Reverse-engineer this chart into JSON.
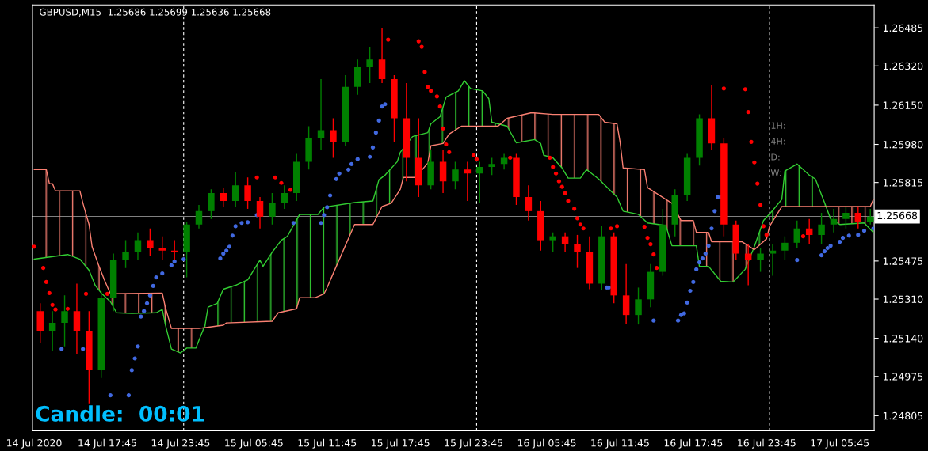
{
  "chart_data": {
    "type": "candlestick",
    "title": "GBPUSD,M15  1.25686 1.25699 1.25636 1.25668",
    "x": [
      "2020-07-14T12:15",
      "2020-07-14T13:15",
      "2020-07-14T14:15",
      "2020-07-14T15:15",
      "2020-07-14T16:15",
      "2020-07-14T17:15",
      "2020-07-14T18:15",
      "2020-07-14T19:15",
      "2020-07-14T20:15",
      "2020-07-14T21:15",
      "2020-07-14T22:15",
      "2020-07-14T23:15",
      "2020-07-15T00:15",
      "2020-07-15T01:15",
      "2020-07-15T02:15",
      "2020-07-15T03:15",
      "2020-07-15T04:15",
      "2020-07-15T05:15",
      "2020-07-15T06:15",
      "2020-07-15T07:15",
      "2020-07-15T08:15",
      "2020-07-15T09:15",
      "2020-07-15T10:15",
      "2020-07-15T11:15",
      "2020-07-15T12:15",
      "2020-07-15T13:15",
      "2020-07-15T14:15",
      "2020-07-15T15:15",
      "2020-07-15T16:15",
      "2020-07-15T17:15",
      "2020-07-15T18:15",
      "2020-07-15T19:15",
      "2020-07-15T20:15",
      "2020-07-15T21:15",
      "2020-07-15T22:15",
      "2020-07-15T23:15",
      "2020-07-16T00:15",
      "2020-07-16T01:15",
      "2020-07-16T02:15",
      "2020-07-16T03:15",
      "2020-07-16T04:15",
      "2020-07-16T05:15",
      "2020-07-16T06:15",
      "2020-07-16T07:15",
      "2020-07-16T08:15",
      "2020-07-16T09:15",
      "2020-07-16T10:15",
      "2020-07-16T11:15",
      "2020-07-16T12:15",
      "2020-07-16T13:15",
      "2020-07-16T14:15",
      "2020-07-16T15:15",
      "2020-07-16T16:15",
      "2020-07-16T17:15",
      "2020-07-16T18:15",
      "2020-07-16T19:15",
      "2020-07-16T20:15",
      "2020-07-16T21:15",
      "2020-07-16T22:15",
      "2020-07-16T23:15",
      "2020-07-17T00:15",
      "2020-07-17T01:15",
      "2020-07-17T02:15",
      "2020-07-17T03:15",
      "2020-07-17T04:15",
      "2020-07-17T05:15",
      "2020-07-17T06:15",
      "2020-07-17T07:15",
      "2020-07-17T08:15"
    ],
    "ohlc": [
      [
        1.25258,
        1.25292,
        1.25122,
        1.25173
      ],
      [
        1.25173,
        1.25258,
        1.25087,
        1.25207
      ],
      [
        1.25207,
        1.25326,
        1.25105,
        1.25258
      ],
      [
        1.25258,
        1.25377,
        1.2507,
        1.25173
      ],
      [
        1.25173,
        1.25258,
        1.24859,
        1.25002
      ],
      [
        1.25002,
        1.25343,
        1.24968,
        1.25316
      ],
      [
        1.25316,
        1.25507,
        1.25258,
        1.25479
      ],
      [
        1.25479,
        1.25565,
        1.25445,
        1.25513
      ],
      [
        1.25513,
        1.25599,
        1.25479,
        1.25565
      ],
      [
        1.25565,
        1.25616,
        1.25496,
        1.25531
      ],
      [
        1.25531,
        1.25582,
        1.25479,
        1.2552
      ],
      [
        1.2552,
        1.25565,
        1.25479,
        1.25513
      ],
      [
        1.25513,
        1.25643,
        1.25404,
        1.25633
      ],
      [
        1.25633,
        1.25718,
        1.25616,
        1.25691
      ],
      [
        1.25691,
        1.25786,
        1.25657,
        1.25769
      ],
      [
        1.25769,
        1.25793,
        1.25711,
        1.25735
      ],
      [
        1.25735,
        1.25861,
        1.25711,
        1.25803
      ],
      [
        1.25803,
        1.25837,
        1.25701,
        1.25735
      ],
      [
        1.25735,
        1.25752,
        1.25616,
        1.25667
      ],
      [
        1.25667,
        1.25769,
        1.25633,
        1.25725
      ],
      [
        1.25725,
        1.25803,
        1.25701,
        1.25769
      ],
      [
        1.25769,
        1.25939,
        1.25735,
        1.25905
      ],
      [
        1.25905,
        1.26059,
        1.25871,
        1.26008
      ],
      [
        1.26008,
        1.26263,
        1.25957,
        1.26042
      ],
      [
        1.26042,
        1.26093,
        1.25922,
        1.25991
      ],
      [
        1.25991,
        1.2628,
        1.25974,
        1.26229
      ],
      [
        1.26229,
        1.26348,
        1.26195,
        1.26314
      ],
      [
        1.26314,
        1.264,
        1.26246,
        1.26348
      ],
      [
        1.26348,
        1.26485,
        1.26246,
        1.26263
      ],
      [
        1.26263,
        1.2628,
        1.25991,
        1.26093
      ],
      [
        1.26093,
        1.26246,
        1.2582,
        1.25922
      ],
      [
        1.25922,
        1.26093,
        1.25752,
        1.25803
      ],
      [
        1.25803,
        1.25957,
        1.25786,
        1.25905
      ],
      [
        1.25905,
        1.25957,
        1.25769,
        1.2582
      ],
      [
        1.2582,
        1.25905,
        1.25786,
        1.25871
      ],
      [
        1.25871,
        1.25905,
        1.25735,
        1.25854
      ],
      [
        1.25854,
        1.25905,
        1.25728,
        1.25882
      ],
      [
        1.25882,
        1.25922,
        1.25847,
        1.25895
      ],
      [
        1.25895,
        1.25939,
        1.25871,
        1.25922
      ],
      [
        1.25922,
        1.25939,
        1.25718,
        1.25752
      ],
      [
        1.25752,
        1.25803,
        1.2565,
        1.25691
      ],
      [
        1.25691,
        1.25735,
        1.2552,
        1.25565
      ],
      [
        1.25565,
        1.25599,
        1.25513,
        1.25582
      ],
      [
        1.25582,
        1.25599,
        1.25513,
        1.25548
      ],
      [
        1.25548,
        1.25588,
        1.25445,
        1.25513
      ],
      [
        1.25513,
        1.25582,
        1.25353,
        1.25377
      ],
      [
        1.25377,
        1.25626,
        1.2535,
        1.25582
      ],
      [
        1.25582,
        1.25599,
        1.25292,
        1.25326
      ],
      [
        1.25326,
        1.25462,
        1.252,
        1.25241
      ],
      [
        1.25241,
        1.2536,
        1.252,
        1.25309
      ],
      [
        1.25309,
        1.25462,
        1.25275,
        1.25428
      ],
      [
        1.25428,
        1.25701,
        1.25411,
        1.25633
      ],
      [
        1.25633,
        1.25786,
        1.25582,
        1.25759
      ],
      [
        1.25759,
        1.25939,
        1.25735,
        1.25922
      ],
      [
        1.25922,
        1.2611,
        1.25888,
        1.26093
      ],
      [
        1.26093,
        1.26239,
        1.25957,
        1.25984
      ],
      [
        1.25984,
        1.26008,
        1.25582,
        1.25633
      ],
      [
        1.25633,
        1.2565,
        1.25479,
        1.25507
      ],
      [
        1.25507,
        1.25548,
        1.2537,
        1.25479
      ],
      [
        1.25479,
        1.25531,
        1.25428,
        1.25507
      ],
      [
        1.25507,
        1.25548,
        1.25411,
        1.2552
      ],
      [
        1.2552,
        1.25582,
        1.25479,
        1.25554
      ],
      [
        1.25554,
        1.2565,
        1.25531,
        1.25616
      ],
      [
        1.25616,
        1.25657,
        1.25548,
        1.25588
      ],
      [
        1.25588,
        1.25684,
        1.25548,
        1.25633
      ],
      [
        1.25633,
        1.25701,
        1.25599,
        1.25657
      ],
      [
        1.25657,
        1.25711,
        1.25616,
        1.25684
      ],
      [
        1.25684,
        1.25711,
        1.25616,
        1.25643
      ],
      [
        1.25643,
        1.25701,
        1.25633,
        1.25667
      ]
    ],
    "colors": [
      "#ff0000",
      "#008000",
      "#008000",
      "#ff0000",
      "#ff0000",
      "#008000",
      "#008000",
      "#008000",
      "#008000",
      "#ff0000",
      "#ff0000",
      "#ff0000",
      "#008000",
      "#008000",
      "#008000",
      "#ff0000",
      "#008000",
      "#ff0000",
      "#ff0000",
      "#008000",
      "#008000",
      "#008000",
      "#008000",
      "#008000",
      "#ff0000",
      "#008000",
      "#008000",
      "#008000",
      "#ff0000",
      "#ff0000",
      "#ff0000",
      "#ff0000",
      "#008000",
      "#ff0000",
      "#008000",
      "#ff0000",
      "#008000",
      "#008000",
      "#008000",
      "#ff0000",
      "#ff0000",
      "#ff0000",
      "#008000",
      "#ff0000",
      "#ff0000",
      "#ff0000",
      "#008000",
      "#ff0000",
      "#ff0000",
      "#008000",
      "#008000",
      "#008000",
      "#008000",
      "#008000",
      "#008000",
      "#ff0000",
      "#ff0000",
      "#ff0000",
      "#ff0000",
      "#008000",
      "#008000",
      "#008000",
      "#008000",
      "#ff0000",
      "#008000",
      "#008000",
      "#008000",
      "#ff0000",
      "#008000"
    ],
    "series": [
      {
        "type": "line",
        "color": "#32cd32",
        "x": [
          "2020-07-14T11:45",
          "2020-07-14T14:30",
          "2020-07-14T15:30",
          "2020-07-14T16:15",
          "2020-07-14T16:45",
          "2020-07-14T17:15",
          "2020-07-14T18:00",
          "2020-07-14T18:30",
          "2020-07-14T19:45",
          "2020-07-14T21:45",
          "2020-07-14T22:15",
          "2020-07-14T22:30",
          "2020-07-14T23:00",
          "2020-07-14T23:45",
          "2020-07-15T00:15",
          "2020-07-15T01:00",
          "2020-07-15T01:45",
          "2020-07-15T02:00",
          "2020-07-15T02:45",
          "2020-07-15T03:15",
          "2020-07-15T04:15",
          "2020-07-15T05:15",
          "2020-07-15T06:15",
          "2020-07-15T06:30",
          "2020-07-15T07:15",
          "2020-07-15T08:00",
          "2020-07-15T08:30",
          "2020-07-15T09:30",
          "2020-07-15T11:00",
          "2020-07-15T11:30",
          "2020-07-15T14:00",
          "2020-07-15T15:30",
          "2020-07-15T16:00",
          "2020-07-15T16:30",
          "2020-07-15T17:30",
          "2020-07-15T17:45",
          "2020-07-15T18:45",
          "2020-07-15T20:00",
          "2020-07-15T20:15",
          "2020-07-15T21:00",
          "2020-07-15T21:30",
          "2020-07-15T22:30",
          "2020-07-15T23:00",
          "2020-07-15T23:30",
          "2020-07-16T00:30",
          "2020-07-16T01:00",
          "2020-07-16T01:15",
          "2020-07-16T02:30",
          "2020-07-16T03:15",
          "2020-07-16T04:45",
          "2020-07-16T05:15",
          "2020-07-16T05:30",
          "2020-07-16T06:15",
          "2020-07-16T07:00",
          "2020-07-16T07:30",
          "2020-07-16T08:30",
          "2020-07-16T09:00",
          "2020-07-16T10:00",
          "2020-07-16T11:30",
          "2020-07-16T12:00",
          "2020-07-16T13:15",
          "2020-07-16T14:00",
          "2020-07-16T15:30",
          "2020-07-16T16:00",
          "2020-07-16T18:00",
          "2020-07-16T18:15",
          "2020-07-16T19:00",
          "2020-07-16T20:00",
          "2020-07-16T21:00",
          "2020-07-16T22:00",
          "2020-07-16T22:45",
          "2020-07-16T23:30",
          "2020-07-17T00:15",
          "2020-07-17T01:00",
          "2020-07-17T01:15",
          "2020-07-17T02:15",
          "2020-07-17T03:15",
          "2020-07-17T03:45",
          "2020-07-17T04:30",
          "2020-07-17T05:00",
          "2020-07-17T05:45",
          "2020-07-17T07:45",
          "2020-07-17T08:30"
        ],
        "values": [
          1.25483,
          1.25503,
          1.25483,
          1.25435,
          1.2537,
          1.25336,
          1.25299,
          1.25251,
          1.25248,
          1.25251,
          1.25265,
          1.252,
          1.25094,
          1.25077,
          1.25098,
          1.25098,
          1.25197,
          1.25275,
          1.25292,
          1.25353,
          1.2537,
          1.25394,
          1.25479,
          1.25452,
          1.25513,
          1.25565,
          1.25582,
          1.25677,
          1.25677,
          1.25708,
          1.25728,
          1.25735,
          1.25827,
          1.25847,
          1.25905,
          1.25946,
          1.26014,
          1.26031,
          1.26069,
          1.261,
          1.26185,
          1.26212,
          1.26256,
          1.26222,
          1.26212,
          1.26178,
          1.26076,
          1.26059,
          1.25987,
          1.26001,
          1.25984,
          1.25933,
          1.25922,
          1.25878,
          1.25834,
          1.25834,
          1.25871,
          1.2583,
          1.25752,
          1.25691,
          1.25677,
          1.2564,
          1.25629,
          1.25541,
          1.25541,
          1.25452,
          1.25452,
          1.25387,
          1.25384,
          1.25439,
          1.25537,
          1.2565,
          1.25694,
          1.25742,
          1.25865,
          1.25895,
          1.25847,
          1.2583,
          1.25728,
          1.25657,
          1.25633,
          1.2564,
          1.25599
        ]
      },
      {
        "type": "line",
        "color": "#fa8072",
        "x": [
          "2020-07-14T11:45",
          "2020-07-14T12:45",
          "2020-07-14T13:00",
          "2020-07-14T13:15",
          "2020-07-14T13:30",
          "2020-07-14T15:30",
          "2020-07-14T15:45",
          "2020-07-14T16:15",
          "2020-07-14T16:30",
          "2020-07-14T17:00",
          "2020-07-14T17:30",
          "2020-07-14T18:00",
          "2020-07-14T22:15",
          "2020-07-14T22:30",
          "2020-07-14T23:00",
          "2020-07-15T01:15",
          "2020-07-15T03:15",
          "2020-07-15T03:30",
          "2020-07-15T07:15",
          "2020-07-15T07:45",
          "2020-07-15T09:15",
          "2020-07-15T09:30",
          "2020-07-15T10:45",
          "2020-07-15T11:30",
          "2020-07-15T11:45",
          "2020-07-15T12:15",
          "2020-07-15T14:00",
          "2020-07-15T15:30",
          "2020-07-15T16:15",
          "2020-07-15T17:00",
          "2020-07-15T17:45",
          "2020-07-15T18:00",
          "2020-07-15T19:00",
          "2020-07-15T20:00",
          "2020-07-15T20:15",
          "2020-07-15T21:15",
          "2020-07-15T21:45",
          "2020-07-15T22:45",
          "2020-07-16T01:45",
          "2020-07-16T02:30",
          "2020-07-16T04:30",
          "2020-07-16T06:15",
          "2020-07-16T10:00",
          "2020-07-16T10:30",
          "2020-07-16T11:30",
          "2020-07-16T11:45",
          "2020-07-16T12:00",
          "2020-07-16T13:45",
          "2020-07-16T14:00",
          "2020-07-16T16:00",
          "2020-07-16T16:45",
          "2020-07-16T17:45",
          "2020-07-16T18:00",
          "2020-07-16T19:00",
          "2020-07-16T19:15",
          "2020-07-16T21:45",
          "2020-07-16T22:45",
          "2020-07-16T23:45",
          "2020-07-17T00:00",
          "2020-07-17T01:00",
          "2020-07-17T08:15",
          "2020-07-17T08:30"
        ],
        "values": [
          1.25871,
          1.25871,
          1.2581,
          1.2581,
          1.25779,
          1.25779,
          1.25725,
          1.25633,
          1.25537,
          1.25462,
          1.25394,
          1.25333,
          1.25336,
          1.25275,
          1.25183,
          1.25183,
          1.25197,
          1.25207,
          1.25214,
          1.25251,
          1.25268,
          1.25316,
          1.25316,
          1.25333,
          1.2536,
          1.25421,
          1.25633,
          1.25633,
          1.25711,
          1.25725,
          1.25786,
          1.25837,
          1.25837,
          1.25899,
          1.25974,
          1.25984,
          1.26025,
          1.26059,
          1.26059,
          1.26093,
          1.26117,
          1.2611,
          1.2611,
          1.26076,
          1.26069,
          1.25991,
          1.25878,
          1.25871,
          1.25793,
          1.25725,
          1.2565,
          1.2565,
          1.25599,
          1.25599,
          1.25558,
          1.25558,
          1.25524,
          1.25571,
          1.25626,
          1.25711,
          1.25711,
          1.25742
        ]
      },
      {
        "type": "scatter",
        "color": "#ff0000",
        "marker": "circle",
        "x": [
          "2020-07-14T11:45",
          "2020-07-14T12:30",
          "2020-07-14T12:45",
          "2020-07-14T13:00",
          "2020-07-14T13:15",
          "2020-07-14T13:30",
          "2020-07-14T14:30",
          "2020-07-14T16:00",
          "2020-07-14T17:45",
          "2020-07-15T06:00",
          "2020-07-15T07:30",
          "2020-07-15T08:00",
          "2020-07-15T08:45",
          "2020-07-15T16:45",
          "2020-07-15T19:15",
          "2020-07-15T19:30",
          "2020-07-15T19:45",
          "2020-07-15T20:00",
          "2020-07-15T20:15",
          "2020-07-15T20:45",
          "2020-07-15T21:00",
          "2020-07-15T21:15",
          "2020-07-15T21:30",
          "2020-07-15T21:45",
          "2020-07-15T23:45",
          "2020-07-16T00:00",
          "2020-07-16T02:45",
          "2020-07-16T06:00",
          "2020-07-16T06:15",
          "2020-07-16T06:30",
          "2020-07-16T06:45",
          "2020-07-16T07:00",
          "2020-07-16T07:15",
          "2020-07-16T07:30",
          "2020-07-16T08:00",
          "2020-07-16T08:15",
          "2020-07-16T08:30",
          "2020-07-16T08:45",
          "2020-07-16T11:00",
          "2020-07-16T11:30",
          "2020-07-16T13:45",
          "2020-07-16T14:00",
          "2020-07-16T14:15",
          "2020-07-16T14:30",
          "2020-07-16T14:45",
          "2020-07-16T20:15",
          "2020-07-16T22:00",
          "2020-07-16T22:15",
          "2020-07-16T22:30",
          "2020-07-16T22:45",
          "2020-07-16T23:00",
          "2020-07-16T23:15",
          "2020-07-16T23:30",
          "2020-07-16T23:45",
          "2020-07-17T02:45"
        ],
        "values": [
          1.25537,
          1.25445,
          1.25384,
          1.25336,
          1.25285,
          1.25265,
          1.25268,
          1.25333,
          1.25333,
          1.25837,
          1.25837,
          1.25813,
          1.25783,
          1.26434,
          1.26427,
          1.26403,
          1.26294,
          1.26229,
          1.26212,
          1.26188,
          1.26144,
          1.26049,
          1.2598,
          1.25946,
          1.25933,
          1.25916,
          1.25922,
          1.25922,
          1.25882,
          1.25854,
          1.2582,
          1.25796,
          1.25769,
          1.25735,
          1.25701,
          1.2566,
          1.25633,
          1.25616,
          1.25616,
          1.25626,
          1.25623,
          1.25575,
          1.25548,
          1.25503,
          1.25445,
          1.26222,
          1.26219,
          1.2612,
          1.25991,
          1.25902,
          1.2581,
          1.25718,
          1.25626,
          1.25588,
          1.25582
        ]
      },
      {
        "type": "scatter",
        "color": "#4169e1",
        "marker": "circle",
        "x": [
          "2020-07-14T14:00",
          "2020-07-14T15:45",
          "2020-07-14T18:00",
          "2020-07-14T19:30",
          "2020-07-14T19:45",
          "2020-07-14T20:00",
          "2020-07-14T20:15",
          "2020-07-14T20:30",
          "2020-07-14T20:45",
          "2020-07-14T21:00",
          "2020-07-14T21:15",
          "2020-07-14T21:30",
          "2020-07-14T21:45",
          "2020-07-14T22:15",
          "2020-07-14T23:00",
          "2020-07-14T23:15",
          "2020-07-15T00:00",
          "2020-07-15T03:00",
          "2020-07-15T03:15",
          "2020-07-15T03:30",
          "2020-07-15T03:45",
          "2020-07-15T04:00",
          "2020-07-15T04:15",
          "2020-07-15T04:45",
          "2020-07-15T05:15",
          "2020-07-15T06:00",
          "2020-07-15T09:00",
          "2020-07-15T11:15",
          "2020-07-15T11:30",
          "2020-07-15T11:45",
          "2020-07-15T12:00",
          "2020-07-15T12:30",
          "2020-07-15T12:45",
          "2020-07-15T13:30",
          "2020-07-15T13:45",
          "2020-07-15T14:15",
          "2020-07-15T15:15",
          "2020-07-15T15:30",
          "2020-07-15T15:45",
          "2020-07-15T16:00",
          "2020-07-15T16:15",
          "2020-07-15T16:30",
          "2020-07-16T10:40",
          "2020-07-16T10:50",
          "2020-07-16T14:30",
          "2020-07-16T16:30",
          "2020-07-16T16:45",
          "2020-07-16T17:00",
          "2020-07-16T17:15",
          "2020-07-16T17:30",
          "2020-07-16T17:45",
          "2020-07-16T18:00",
          "2020-07-16T18:15",
          "2020-07-16T18:30",
          "2020-07-16T18:45",
          "2020-07-16T19:00",
          "2020-07-16T19:15",
          "2020-07-16T19:30",
          "2020-07-16T19:45",
          "2020-07-16T20:00",
          "2020-07-17T02:15",
          "2020-07-17T04:15",
          "2020-07-17T04:30",
          "2020-07-17T04:45",
          "2020-07-17T05:00",
          "2020-07-17T05:45",
          "2020-07-17T06:00",
          "2020-07-17T06:30",
          "2020-07-17T07:15",
          "2020-07-17T07:45",
          "2020-07-17T08:30"
        ],
        "values": [
          1.25094,
          1.25094,
          1.24893,
          1.24893,
          1.25002,
          1.25053,
          1.25105,
          1.25234,
          1.25258,
          1.25292,
          1.25326,
          1.25367,
          1.25404,
          1.25421,
          1.25456,
          1.25473,
          1.25483,
          1.25486,
          1.25507,
          1.2552,
          1.25537,
          1.25585,
          1.25626,
          1.2564,
          1.25643,
          1.25674,
          1.2564,
          1.2564,
          1.25674,
          1.25708,
          1.25759,
          1.2583,
          1.25854,
          1.25871,
          1.25895,
          1.25916,
          1.25926,
          1.25967,
          1.26031,
          1.26083,
          1.26144,
          1.26154,
          1.2536,
          1.2536,
          1.25217,
          1.25217,
          1.25241,
          1.25248,
          1.25295,
          1.25346,
          1.25384,
          1.25439,
          1.25469,
          1.25486,
          1.25507,
          1.25541,
          1.25616,
          1.25691,
          1.25752,
          1.25752,
          1.25479,
          1.255,
          1.25517,
          1.25531,
          1.25541,
          1.25558,
          1.25575,
          1.25585,
          1.25588,
          1.25606,
          1.25616
        ]
      }
    ],
    "xlim": [
      "2020-07-14T11:37",
      "2020-07-17T08:34"
    ],
    "xticks": [
      {
        "value": "2020-07-14T11:45",
        "label": "14 Jul 2020"
      },
      {
        "value": "2020-07-14T17:45",
        "label": "14 Jul 17:45"
      },
      {
        "value": "2020-07-14T23:45",
        "label": "14 Jul 23:45"
      },
      {
        "value": "2020-07-15T05:45",
        "label": "15 Jul 05:45"
      },
      {
        "value": "2020-07-15T11:45",
        "label": "15 Jul 11:45"
      },
      {
        "value": "2020-07-15T17:45",
        "label": "15 Jul 17:45"
      },
      {
        "value": "2020-07-15T23:45",
        "label": "15 Jul 23:45"
      },
      {
        "value": "2020-07-16T05:45",
        "label": "16 Jul 05:45"
      },
      {
        "value": "2020-07-16T11:45",
        "label": "16 Jul 11:45"
      },
      {
        "value": "2020-07-16T17:45",
        "label": "16 Jul 17:45"
      },
      {
        "value": "2020-07-16T23:45",
        "label": "16 Jul 23:45"
      },
      {
        "value": "2020-07-17T05:45",
        "label": "17 Jul 05:45"
      }
    ],
    "ylim": [
      1.2474,
      1.26584
    ],
    "yticks": [
      1.26485,
      {
        "value": 1.2632,
        "label": "1.26320"
      },
      {
        "value": 1.2615,
        "label": "1.26150"
      },
      {
        "value": 1.2598,
        "label": "1.25980"
      },
      1.25815,
      {
        "value": 1.25645,
        "label": null
      },
      1.25475,
      {
        "value": 1.2531,
        "label": "1.25310"
      },
      {
        "value": 1.2514,
        "label": "1.25140"
      },
      1.24975,
      1.24805
    ],
    "ref_lines": [
      {
        "axis": "y",
        "value": 1.25668,
        "label": "1.25668",
        "color": "#808080"
      },
      {
        "axis": "x",
        "value": "2020-07-15T00:00",
        "color": "#ffffff",
        "line_style": "dashed"
      },
      {
        "axis": "x",
        "value": "2020-07-16T00:00",
        "color": "#ffffff",
        "line_style": "dashed"
      },
      {
        "axis": "x",
        "value": "2020-07-17T00:00",
        "color": "#ffffff",
        "line_style": "dashed"
      }
    ],
    "annotations": [
      "Candle:  00:01",
      "1H:",
      "4H:",
      "D:",
      "W:"
    ]
  }
}
